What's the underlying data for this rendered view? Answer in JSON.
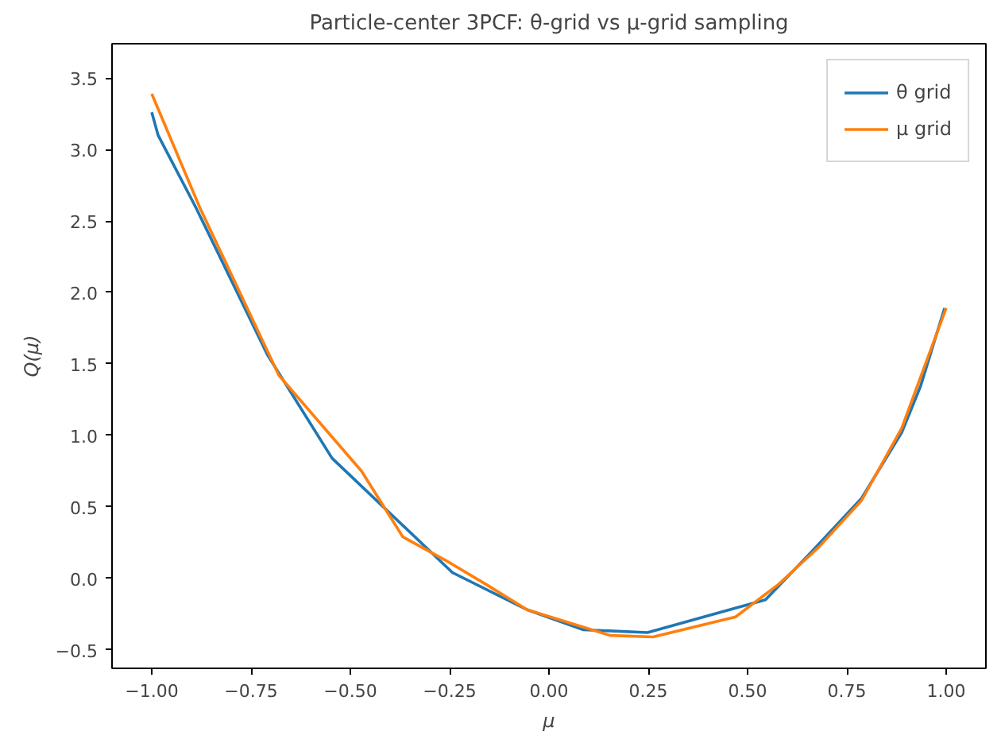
{
  "chart_data": {
    "type": "line",
    "title": "Particle-center 3PCF: θ-grid vs μ-grid sampling",
    "xlabel": "μ",
    "ylabel": "Q(μ)",
    "series": [
      {
        "name": "θ grid",
        "color": "#1f77b4",
        "x": [
          -1.0,
          -0.984,
          -0.89,
          -0.708,
          -0.546,
          -0.243,
          -0.055,
          0.087,
          0.248,
          0.545,
          0.673,
          0.787,
          0.888,
          0.935,
          0.996
        ],
        "values": [
          3.26,
          3.1,
          2.6,
          1.56,
          0.84,
          0.04,
          -0.22,
          -0.36,
          -0.38,
          -0.15,
          0.22,
          0.56,
          1.02,
          1.34,
          1.89
        ]
      },
      {
        "name": "μ grid",
        "color": "#ff7f0e",
        "x": [
          -1.0,
          -0.88,
          -0.68,
          -0.472,
          -0.368,
          -0.263,
          -0.16,
          -0.055,
          0.154,
          0.262,
          0.47,
          0.579,
          0.68,
          0.787,
          0.888,
          1.0
        ],
        "values": [
          3.39,
          2.6,
          1.42,
          0.75,
          0.29,
          0.13,
          -0.04,
          -0.22,
          -0.4,
          -0.41,
          -0.27,
          -0.04,
          0.22,
          0.545,
          1.05,
          1.89
        ]
      }
    ],
    "xlim": [
      -1.1,
      1.1
    ],
    "ylim": [
      -0.63,
      3.74
    ],
    "xticks": [
      {
        "value": -1.0,
        "label": "−1.00"
      },
      {
        "value": -0.75,
        "label": "−0.75"
      },
      {
        "value": -0.5,
        "label": "−0.50"
      },
      {
        "value": -0.25,
        "label": "−0.25"
      },
      {
        "value": 0.0,
        "label": "0.00"
      },
      {
        "value": 0.25,
        "label": "0.25"
      },
      {
        "value": 0.5,
        "label": "0.50"
      },
      {
        "value": 0.75,
        "label": "0.75"
      },
      {
        "value": 1.0,
        "label": "1.00"
      }
    ],
    "yticks": [
      {
        "value": -0.5,
        "label": "−0.5"
      },
      {
        "value": 0.0,
        "label": "0.0"
      },
      {
        "value": 0.5,
        "label": "0.5"
      },
      {
        "value": 1.0,
        "label": "1.0"
      },
      {
        "value": 1.5,
        "label": "1.5"
      },
      {
        "value": 2.0,
        "label": "2.0"
      },
      {
        "value": 2.5,
        "label": "2.5"
      },
      {
        "value": 3.0,
        "label": "3.0"
      },
      {
        "value": 3.5,
        "label": "3.5"
      }
    ],
    "grid": false,
    "legend": "top right",
    "line_style": "solid"
  }
}
